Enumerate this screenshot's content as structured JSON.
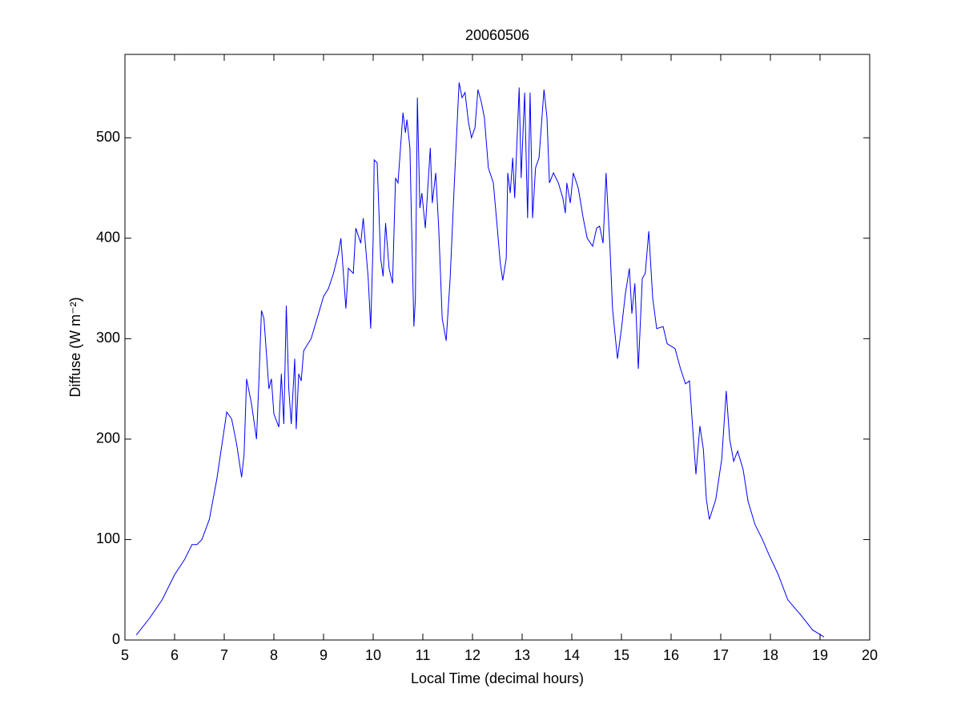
{
  "chart_data": {
    "type": "line",
    "title": "20060506",
    "x_label": "Local Time (decimal hours)",
    "y_label": "Diffuse (W m⁻²)",
    "xlim": [
      5,
      20
    ],
    "ylim": [
      0,
      583
    ],
    "xticks": [
      5,
      6,
      7,
      8,
      9,
      10,
      11,
      12,
      13,
      14,
      15,
      16,
      17,
      18,
      19,
      20
    ],
    "yticks": [
      0,
      100,
      200,
      300,
      400,
      500
    ],
    "grid": false,
    "series": [
      {
        "color": "#0000ff",
        "x": [
          5.23,
          5.5,
          5.75,
          6.0,
          6.2,
          6.35,
          6.45,
          6.55,
          6.7,
          6.85,
          7.0,
          7.05,
          7.15,
          7.25,
          7.35,
          7.4,
          7.45,
          7.55,
          7.65,
          7.7,
          7.75,
          7.8,
          7.9,
          7.95,
          8.0,
          8.1,
          8.15,
          8.2,
          8.25,
          8.3,
          8.35,
          8.42,
          8.45,
          8.5,
          8.55,
          8.6,
          8.75,
          8.9,
          9.0,
          9.1,
          9.2,
          9.3,
          9.35,
          9.45,
          9.5,
          9.6,
          9.65,
          9.75,
          9.8,
          9.9,
          9.95,
          10.0,
          10.02,
          10.08,
          10.15,
          10.2,
          10.25,
          10.32,
          10.39,
          10.45,
          10.5,
          10.6,
          10.65,
          10.68,
          10.74,
          10.77,
          10.82,
          10.85,
          10.89,
          10.94,
          10.98,
          11.05,
          11.15,
          11.19,
          11.26,
          11.32,
          11.39,
          11.47,
          11.55,
          11.63,
          11.73,
          11.79,
          11.85,
          11.92,
          11.98,
          12.05,
          12.11,
          12.18,
          12.24,
          12.32,
          12.42,
          12.5,
          12.56,
          12.61,
          12.68,
          12.71,
          12.76,
          12.81,
          12.85,
          12.94,
          12.98,
          13.05,
          13.11,
          13.16,
          13.21,
          13.27,
          13.34,
          13.44,
          13.5,
          13.55,
          13.63,
          13.73,
          13.82,
          13.87,
          13.9,
          13.97,
          14.03,
          14.13,
          14.23,
          14.31,
          14.42,
          14.5,
          14.56,
          14.63,
          14.69,
          14.77,
          14.82,
          14.92,
          15.0,
          15.08,
          15.16,
          15.21,
          15.27,
          15.34,
          15.42,
          15.48,
          15.55,
          15.63,
          15.71,
          15.84,
          15.92,
          16.08,
          16.19,
          16.29,
          16.37,
          16.45,
          16.5,
          16.58,
          16.65,
          16.71,
          16.77,
          16.9,
          17.02,
          17.11,
          17.18,
          17.26,
          17.34,
          17.45,
          17.55,
          17.69,
          17.84,
          17.97,
          18.16,
          18.35,
          18.61,
          18.85,
          19.08
        ],
        "values": [
          5,
          22,
          40,
          65,
          80,
          95,
          95,
          100,
          120,
          160,
          210,
          227,
          220,
          195,
          162,
          185,
          260,
          235,
          200,
          260,
          328,
          320,
          250,
          260,
          225,
          212,
          265,
          215,
          333,
          250,
          215,
          280,
          210,
          265,
          258,
          288,
          300,
          325,
          342,
          350,
          365,
          385,
          400,
          330,
          370,
          365,
          410,
          395,
          420,
          360,
          310,
          400,
          478,
          475,
          380,
          362,
          415,
          370,
          355,
          460,
          455,
          525,
          505,
          518,
          490,
          420,
          312,
          340,
          540,
          430,
          445,
          410,
          490,
          435,
          465,
          410,
          320,
          298,
          360,
          450,
          555,
          540,
          545,
          515,
          500,
          510,
          548,
          535,
          520,
          470,
          455,
          410,
          375,
          358,
          380,
          465,
          445,
          480,
          440,
          550,
          460,
          545,
          420,
          545,
          420,
          470,
          480,
          548,
          520,
          455,
          465,
          455,
          440,
          425,
          455,
          435,
          465,
          450,
          420,
          400,
          392,
          410,
          412,
          395,
          465,
          390,
          330,
          280,
          310,
          345,
          370,
          325,
          355,
          270,
          360,
          365,
          407,
          340,
          310,
          312,
          295,
          290,
          270,
          255,
          258,
          200,
          165,
          213,
          190,
          140,
          120,
          140,
          180,
          248,
          200,
          178,
          188,
          170,
          138,
          115,
          100,
          85,
          65,
          40,
          25,
          10,
          3
        ]
      }
    ]
  }
}
